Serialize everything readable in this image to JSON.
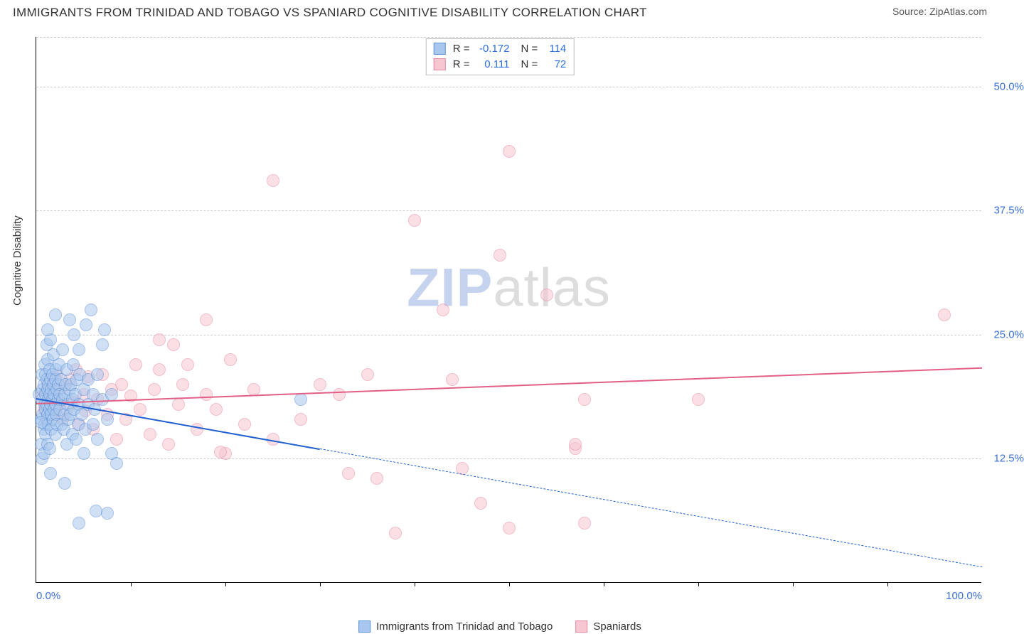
{
  "title": "IMMIGRANTS FROM TRINIDAD AND TOBAGO VS SPANIARD COGNITIVE DISABILITY CORRELATION CHART",
  "source_prefix": "Source: ",
  "source_name": "ZipAtlas.com",
  "y_axis_title": "Cognitive Disability",
  "watermark": {
    "part1": "ZIP",
    "part2": "atlas"
  },
  "colors": {
    "series_a_fill": "#a9c7ee",
    "series_a_stroke": "#5e92d6",
    "series_b_fill": "#f6c6d1",
    "series_b_stroke": "#e889a2",
    "trend_a": "#1f5fd0",
    "trend_b": "#e25f86",
    "axis_text": "#3b6fd8",
    "grid": "#cccccc",
    "bg": "#ffffff"
  },
  "chart": {
    "type": "scatter",
    "xlim": [
      0,
      100
    ],
    "ylim": [
      0,
      55
    ],
    "y_ticks": [
      {
        "v": 12.5,
        "label": "12.5%"
      },
      {
        "v": 25.0,
        "label": "25.0%"
      },
      {
        "v": 37.5,
        "label": "37.5%"
      },
      {
        "v": 50.0,
        "label": "50.0%"
      }
    ],
    "x_ticks_minor": [
      10,
      20,
      30,
      40,
      50,
      60,
      70,
      80,
      90
    ],
    "x_tick_labels": [
      {
        "v": 0,
        "label": "0.0%"
      },
      {
        "v": 100,
        "label": "100.0%"
      }
    ],
    "marker_radius": 9,
    "marker_opacity": 0.55,
    "grid_dash": true
  },
  "stats": {
    "series_a": {
      "r": "-0.172",
      "n": "114"
    },
    "series_b": {
      "r": "0.111",
      "n": "72"
    }
  },
  "legend": {
    "series_a": "Immigrants from Trinidad and Tobago",
    "series_b": "Spaniards"
  },
  "trend_lines": {
    "a_solid": {
      "x1": 0,
      "y1": 18.6,
      "x2": 30,
      "y2": 13.5
    },
    "a_dashed": {
      "x1": 30,
      "y1": 13.5,
      "x2": 100,
      "y2": 1.6
    },
    "b": {
      "x1": 0,
      "y1": 18.1,
      "x2": 100,
      "y2": 21.7
    }
  },
  "series_a_points": [
    [
      0.3,
      19.0
    ],
    [
      0.5,
      16.5
    ],
    [
      0.5,
      14.0
    ],
    [
      0.6,
      21.0
    ],
    [
      0.6,
      18.5
    ],
    [
      0.6,
      12.5
    ],
    [
      0.7,
      19.5
    ],
    [
      0.7,
      17.0
    ],
    [
      0.8,
      20.0
    ],
    [
      0.8,
      15.5
    ],
    [
      0.8,
      13.0
    ],
    [
      0.9,
      22.0
    ],
    [
      0.9,
      18.0
    ],
    [
      0.9,
      16.0
    ],
    [
      1.0,
      19.0
    ],
    [
      1.0,
      17.5
    ],
    [
      1.0,
      21.0
    ],
    [
      1.0,
      15.0
    ],
    [
      1.1,
      24.0
    ],
    [
      1.1,
      20.5
    ],
    [
      1.1,
      18.0
    ],
    [
      1.1,
      16.5
    ],
    [
      1.2,
      19.5
    ],
    [
      1.2,
      17.0
    ],
    [
      1.2,
      22.5
    ],
    [
      1.2,
      14.0
    ],
    [
      1.3,
      20.0
    ],
    [
      1.3,
      18.5
    ],
    [
      1.3,
      16.0
    ],
    [
      1.4,
      21.5
    ],
    [
      1.4,
      19.0
    ],
    [
      1.4,
      17.5
    ],
    [
      1.4,
      13.5
    ],
    [
      1.5,
      20.5
    ],
    [
      1.5,
      18.0
    ],
    [
      1.5,
      24.5
    ],
    [
      1.6,
      19.5
    ],
    [
      1.6,
      17.0
    ],
    [
      1.6,
      15.5
    ],
    [
      1.7,
      21.0
    ],
    [
      1.7,
      18.5
    ],
    [
      1.8,
      20.0
    ],
    [
      1.8,
      16.5
    ],
    [
      1.8,
      23.0
    ],
    [
      1.9,
      19.0
    ],
    [
      1.9,
      17.5
    ],
    [
      2.0,
      20.5
    ],
    [
      2.0,
      15.0
    ],
    [
      2.0,
      18.0
    ],
    [
      2.1,
      21.5
    ],
    [
      2.1,
      17.0
    ],
    [
      2.2,
      19.5
    ],
    [
      2.2,
      16.0
    ],
    [
      2.3,
      20.0
    ],
    [
      2.3,
      18.5
    ],
    [
      2.4,
      22.0
    ],
    [
      2.5,
      17.5
    ],
    [
      2.5,
      19.0
    ],
    [
      2.6,
      20.5
    ],
    [
      2.7,
      16.0
    ],
    [
      2.8,
      18.5
    ],
    [
      2.8,
      23.5
    ],
    [
      2.9,
      15.5
    ],
    [
      3.0,
      19.0
    ],
    [
      3.0,
      17.0
    ],
    [
      3.1,
      20.0
    ],
    [
      3.2,
      14.0
    ],
    [
      3.2,
      21.5
    ],
    [
      3.3,
      18.0
    ],
    [
      3.4,
      16.5
    ],
    [
      3.5,
      19.5
    ],
    [
      3.5,
      26.5
    ],
    [
      3.6,
      17.0
    ],
    [
      3.7,
      20.0
    ],
    [
      3.8,
      15.0
    ],
    [
      3.8,
      18.5
    ],
    [
      3.9,
      22.0
    ],
    [
      4.0,
      17.5
    ],
    [
      4.0,
      25.0
    ],
    [
      4.1,
      19.0
    ],
    [
      4.2,
      14.5
    ],
    [
      4.3,
      20.5
    ],
    [
      4.4,
      16.0
    ],
    [
      4.5,
      23.5
    ],
    [
      4.5,
      18.0
    ],
    [
      4.6,
      21.0
    ],
    [
      4.8,
      17.0
    ],
    [
      5.0,
      19.5
    ],
    [
      5.0,
      13.0
    ],
    [
      5.2,
      15.5
    ],
    [
      5.3,
      26.0
    ],
    [
      5.5,
      18.0
    ],
    [
      5.5,
      20.5
    ],
    [
      5.8,
      27.5
    ],
    [
      6.0,
      16.0
    ],
    [
      6.0,
      19.0
    ],
    [
      6.2,
      17.5
    ],
    [
      6.5,
      14.5
    ],
    [
      6.5,
      21.0
    ],
    [
      7.0,
      24.0
    ],
    [
      7.0,
      18.5
    ],
    [
      7.2,
      25.5
    ],
    [
      7.5,
      16.5
    ],
    [
      8.0,
      19.0
    ],
    [
      8.0,
      13.0
    ],
    [
      8.5,
      12.0
    ],
    [
      3.0,
      10.0
    ],
    [
      7.5,
      7.0
    ],
    [
      4.5,
      6.0
    ],
    [
      2.0,
      27.0
    ],
    [
      1.2,
      25.5
    ],
    [
      1.5,
      11.0
    ],
    [
      0.5,
      16.2
    ],
    [
      6.3,
      7.2
    ],
    [
      28.0,
      18.5
    ]
  ],
  "series_b_points": [
    [
      0.5,
      18.7
    ],
    [
      0.8,
      17.5
    ],
    [
      1.0,
      19.2
    ],
    [
      1.2,
      20.0
    ],
    [
      1.5,
      18.3
    ],
    [
      1.8,
      17.0
    ],
    [
      2.0,
      19.5
    ],
    [
      2.2,
      21.0
    ],
    [
      2.5,
      18.0
    ],
    [
      2.8,
      16.5
    ],
    [
      3.0,
      19.8
    ],
    [
      3.2,
      17.5
    ],
    [
      3.5,
      20.5
    ],
    [
      4.0,
      18.2
    ],
    [
      4.2,
      21.5
    ],
    [
      4.5,
      16.0
    ],
    [
      5.0,
      19.0
    ],
    [
      5.2,
      17.3
    ],
    [
      5.5,
      20.8
    ],
    [
      6.0,
      15.5
    ],
    [
      6.5,
      18.5
    ],
    [
      7.0,
      21.0
    ],
    [
      7.5,
      17.0
    ],
    [
      8.0,
      19.5
    ],
    [
      8.5,
      14.5
    ],
    [
      9.0,
      20.0
    ],
    [
      9.5,
      16.5
    ],
    [
      10.0,
      18.8
    ],
    [
      10.5,
      22.0
    ],
    [
      11.0,
      17.5
    ],
    [
      12.0,
      15.0
    ],
    [
      12.5,
      19.5
    ],
    [
      13.0,
      21.5
    ],
    [
      14.0,
      14.0
    ],
    [
      14.5,
      24.0
    ],
    [
      15.0,
      18.0
    ],
    [
      15.5,
      20.0
    ],
    [
      16.0,
      22.0
    ],
    [
      13.0,
      24.5
    ],
    [
      17.0,
      15.5
    ],
    [
      18.0,
      19.0
    ],
    [
      19.0,
      17.5
    ],
    [
      20.0,
      13.0
    ],
    [
      20.5,
      22.5
    ],
    [
      18.0,
      26.5
    ],
    [
      22.0,
      16.0
    ],
    [
      23.0,
      19.5
    ],
    [
      25.0,
      14.5
    ],
    [
      25.0,
      40.5
    ],
    [
      28.0,
      16.5
    ],
    [
      30.0,
      20.0
    ],
    [
      32.0,
      19.0
    ],
    [
      33.0,
      11.0
    ],
    [
      35.0,
      21.0
    ],
    [
      36.0,
      10.5
    ],
    [
      38.0,
      5.0
    ],
    [
      40.0,
      36.5
    ],
    [
      43.0,
      27.5
    ],
    [
      44.0,
      20.5
    ],
    [
      45.0,
      11.5
    ],
    [
      47.0,
      8.0
    ],
    [
      49.0,
      33.0
    ],
    [
      50.0,
      43.5
    ],
    [
      50.0,
      5.5
    ],
    [
      54.0,
      29.0
    ],
    [
      57.0,
      13.5
    ],
    [
      58.0,
      18.5
    ],
    [
      58.0,
      6.0
    ],
    [
      70.0,
      18.5
    ],
    [
      57.0,
      14.0
    ],
    [
      96.0,
      27.0
    ],
    [
      19.5,
      13.2
    ]
  ]
}
